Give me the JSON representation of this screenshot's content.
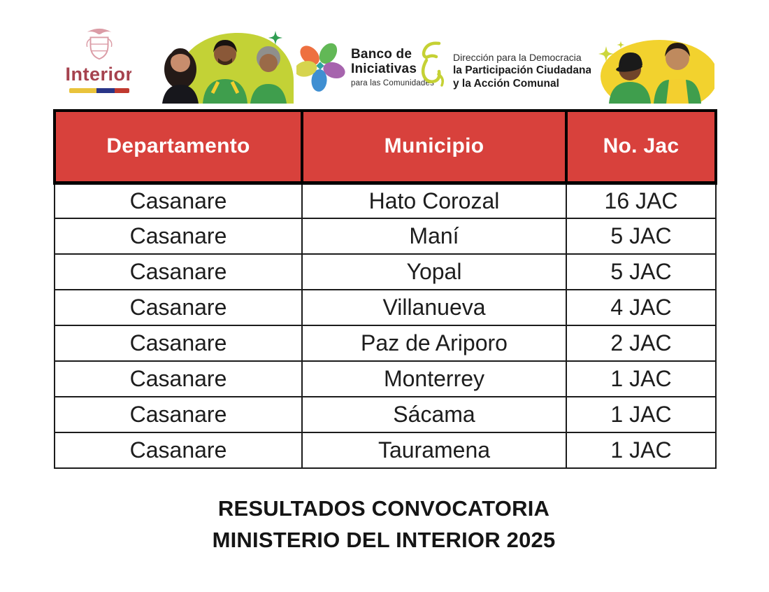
{
  "banner": {
    "interior": {
      "label": "Interior"
    },
    "banco": {
      "title_line1": "Banco de",
      "title_line2": "Iniciativas",
      "subtitle": "para las Comunidades"
    },
    "direccion": {
      "line1": "Dirección para la Democracia",
      "line2": "la Participación Ciudadana",
      "line3": "y la Acción Comunal"
    }
  },
  "table": {
    "headers": [
      "Departamento",
      "Municipio",
      "No. Jac"
    ],
    "rows": [
      [
        "Casanare",
        "Hato Corozal",
        "16 JAC"
      ],
      [
        "Casanare",
        "Maní",
        "5 JAC"
      ],
      [
        "Casanare",
        "Yopal",
        "5 JAC"
      ],
      [
        "Casanare",
        "Villanueva",
        "4 JAC"
      ],
      [
        "Casanare",
        "Paz de Ariporo",
        "2 JAC"
      ],
      [
        "Casanare",
        "Monterrey",
        "1 JAC"
      ],
      [
        "Casanare",
        "Sácama",
        "1 JAC"
      ],
      [
        "Casanare",
        "Tauramena",
        "1 JAC"
      ]
    ]
  },
  "footer": {
    "line1": "RESULTADOS CONVOCATORIA",
    "line2": "MINISTERIO DEL INTERIOR 2025"
  },
  "colors": {
    "header_bg": "#d8413c",
    "header_text": "#ffffff",
    "table_border": "#1c1c1c",
    "interior_red": "#a6424e",
    "lime_blob": "#c3d236",
    "yellow_blob": "#f2d22e",
    "vest_green": "#3f9e4d"
  }
}
